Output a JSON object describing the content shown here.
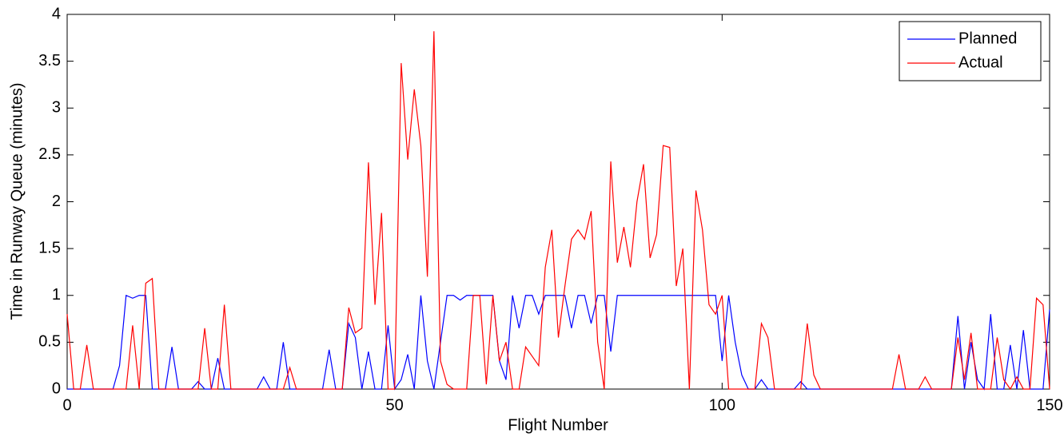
{
  "chart_data": {
    "type": "line",
    "x_label": "Flight Number",
    "y_label": "Time in Runway Queue (minutes)",
    "x": [
      0,
      1,
      2,
      3,
      4,
      5,
      6,
      7,
      8,
      9,
      10,
      11,
      12,
      13,
      14,
      15,
      16,
      17,
      18,
      19,
      20,
      21,
      22,
      23,
      24,
      25,
      26,
      27,
      28,
      29,
      30,
      31,
      32,
      33,
      34,
      35,
      36,
      37,
      38,
      39,
      40,
      41,
      42,
      43,
      44,
      45,
      46,
      47,
      48,
      49,
      50,
      51,
      52,
      53,
      54,
      55,
      56,
      57,
      58,
      59,
      60,
      61,
      62,
      63,
      64,
      65,
      66,
      67,
      68,
      69,
      70,
      71,
      72,
      73,
      74,
      75,
      76,
      77,
      78,
      79,
      80,
      81,
      82,
      83,
      84,
      85,
      86,
      87,
      88,
      89,
      90,
      91,
      92,
      93,
      94,
      95,
      96,
      97,
      98,
      99,
      100,
      101,
      102,
      103,
      104,
      105,
      106,
      107,
      108,
      109,
      110,
      111,
      112,
      113,
      114,
      115,
      116,
      117,
      118,
      119,
      120,
      121,
      122,
      123,
      124,
      125,
      126,
      127,
      128,
      129,
      130,
      131,
      132,
      133,
      134,
      135,
      136,
      137,
      138,
      139,
      140,
      141,
      142,
      143,
      144,
      145,
      146,
      147,
      148,
      149,
      150
    ],
    "series": [
      {
        "name": "Planned",
        "color": "#0000ff",
        "values": [
          0,
          0,
          0,
          0,
          0,
          0,
          0,
          0,
          0.25,
          1.0,
          0.97,
          1.0,
          1.0,
          0,
          0,
          0,
          0.45,
          0,
          0,
          0,
          0.08,
          0,
          0,
          0.33,
          0,
          0,
          0,
          0,
          0,
          0,
          0.13,
          0,
          0,
          0.5,
          0,
          0,
          0,
          0,
          0,
          0,
          0.42,
          0,
          0,
          0.7,
          0.55,
          0,
          0.4,
          0,
          0,
          0.68,
          0,
          0.1,
          0.37,
          0,
          1.0,
          0.3,
          0,
          0.5,
          1.0,
          1.0,
          0.95,
          1.0,
          1.0,
          1.0,
          1.0,
          1.0,
          0.3,
          0.1,
          1.0,
          0.65,
          1.0,
          1.0,
          0.8,
          1.0,
          1.0,
          1.0,
          1.0,
          0.65,
          1.0,
          1.0,
          0.7,
          1.0,
          1.0,
          0.4,
          1.0,
          1.0,
          1.0,
          1.0,
          1.0,
          1.0,
          1,
          1,
          1,
          1,
          1,
          1,
          1,
          1,
          1,
          1,
          0.3,
          1.0,
          0.5,
          0.15,
          0,
          0,
          0.1,
          0,
          0,
          0,
          0,
          0,
          0.08,
          0,
          0,
          0,
          0,
          0,
          0,
          0,
          0,
          0,
          0,
          0,
          0,
          0,
          0,
          0,
          0,
          0,
          0,
          0,
          0,
          0,
          0,
          0,
          0.78,
          0,
          0.5,
          0.1,
          0,
          0.8,
          0,
          0,
          0.47,
          0,
          0.63,
          0,
          0,
          0,
          0.85
        ]
      },
      {
        "name": "Actual",
        "color": "#ff0000",
        "values": [
          0.8,
          0,
          0,
          0.47,
          0,
          0,
          0,
          0,
          0,
          0,
          0.68,
          0,
          1.13,
          1.18,
          0,
          0,
          0,
          0,
          0,
          0,
          0,
          0.65,
          0,
          0,
          0.9,
          0,
          0,
          0,
          0,
          0,
          0,
          0,
          0,
          0,
          0.23,
          0,
          0,
          0,
          0,
          0,
          0,
          0,
          0,
          0.87,
          0.6,
          0.65,
          2.42,
          0.9,
          1.88,
          0,
          0,
          3.48,
          2.45,
          3.2,
          2.6,
          1.2,
          3.82,
          0.3,
          0.05,
          0,
          0,
          0,
          1.0,
          1.0,
          0.05,
          1.0,
          0.3,
          0.5,
          0,
          0,
          0.45,
          0.35,
          0.25,
          1.3,
          1.7,
          0.55,
          1.1,
          1.6,
          1.7,
          1.6,
          1.9,
          0.5,
          0,
          2.43,
          1.35,
          1.73,
          1.3,
          2.0,
          2.4,
          1.4,
          1.65,
          2.6,
          2.58,
          1.1,
          1.5,
          0,
          2.12,
          1.7,
          0.9,
          0.8,
          1.0,
          0,
          0,
          0,
          0,
          0,
          0.7,
          0.55,
          0,
          0,
          0,
          0,
          0,
          0.7,
          0.15,
          0,
          0,
          0,
          0,
          0,
          0,
          0,
          0,
          0,
          0,
          0,
          0,
          0.37,
          0,
          0,
          0,
          0.13,
          0,
          0,
          0,
          0,
          0.55,
          0.1,
          0.6,
          0,
          0,
          0,
          0.55,
          0.1,
          0,
          0.13,
          0,
          0,
          0.97,
          0.9,
          0
        ]
      }
    ],
    "xlim": [
      0,
      150
    ],
    "xticks": [
      0,
      50,
      100,
      150
    ],
    "ylim": [
      0,
      4
    ],
    "yticks": [
      0,
      0.5,
      1,
      1.5,
      2,
      2.5,
      3,
      3.5,
      4
    ],
    "grid": false,
    "legend_position": "top-right"
  }
}
